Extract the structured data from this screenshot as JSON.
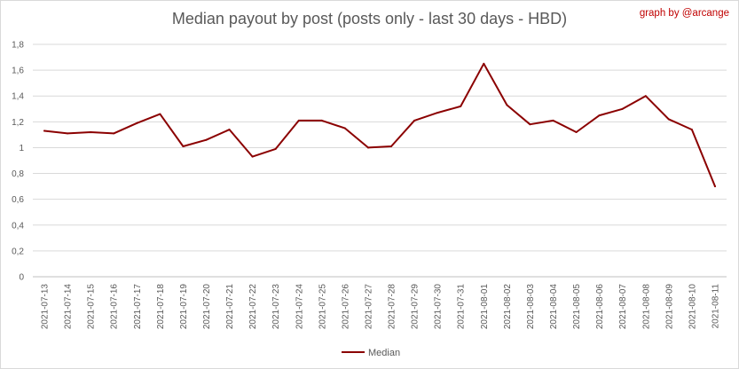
{
  "credit": "graph by @arcange",
  "colors": {
    "series": "#8b0000",
    "credit": "#c00000",
    "grid": "#d9d9d9",
    "axis": "#bfbfbf",
    "text": "#595959"
  },
  "chart_data": {
    "type": "line",
    "title": "Median payout by post (posts only - last 30 days - HBD)",
    "xlabel": "",
    "ylabel": "",
    "ylim": [
      0,
      1.8
    ],
    "yticks": [
      "0",
      "0,2",
      "0,4",
      "0,6",
      "0,8",
      "1",
      "1,2",
      "1,4",
      "1,6",
      "1,8"
    ],
    "grid": true,
    "legend": "bottom",
    "categories": [
      "2021-07-13",
      "2021-07-14",
      "2021-07-15",
      "2021-07-16",
      "2021-07-17",
      "2021-07-18",
      "2021-07-19",
      "2021-07-20",
      "2021-07-21",
      "2021-07-22",
      "2021-07-23",
      "2021-07-24",
      "2021-07-25",
      "2021-07-26",
      "2021-07-27",
      "2021-07-28",
      "2021-07-29",
      "2021-07-30",
      "2021-07-31",
      "2021-08-01",
      "2021-08-02",
      "2021-08-03",
      "2021-08-04",
      "2021-08-05",
      "2021-08-06",
      "2021-08-07",
      "2021-08-08",
      "2021-08-09",
      "2021-08-10",
      "2021-08-11"
    ],
    "series": [
      {
        "name": "Median",
        "values": [
          1.13,
          1.11,
          1.12,
          1.11,
          1.19,
          1.26,
          1.01,
          1.06,
          1.14,
          0.93,
          0.99,
          1.21,
          1.21,
          1.15,
          1.0,
          1.01,
          1.21,
          1.27,
          1.32,
          1.65,
          1.33,
          1.18,
          1.21,
          1.12,
          1.25,
          1.3,
          1.4,
          1.22,
          1.14,
          0.7
        ]
      }
    ]
  }
}
